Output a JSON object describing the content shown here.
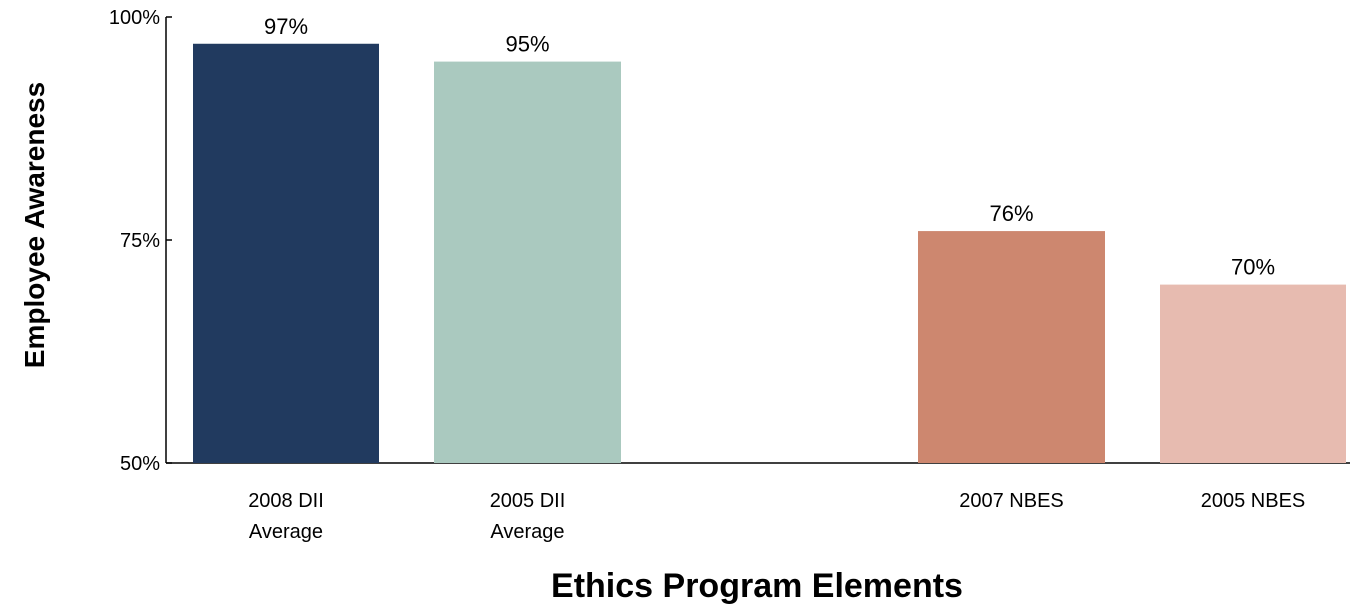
{
  "chart_data": {
    "type": "bar",
    "title": "",
    "xlabel": "Ethics Program Elements",
    "ylabel": "Employee Awareness",
    "categories": [
      [
        "2008 DII",
        "Average"
      ],
      [
        "2005 DII",
        "Average"
      ],
      [
        "2007 NBES"
      ],
      [
        "2005 NBES"
      ]
    ],
    "values": [
      97,
      95,
      76,
      70
    ],
    "value_labels": [
      "97%",
      "95%",
      "76%",
      "70%"
    ],
    "colors": [
      "#213a5f",
      "#aac9bf",
      "#cd876f",
      "#e7bbb0"
    ],
    "ylim": [
      50,
      100
    ],
    "yticks": [
      50,
      75,
      100
    ],
    "ytick_labels": [
      "50%",
      "75%",
      "100%"
    ],
    "grid": false,
    "legend": "none"
  }
}
